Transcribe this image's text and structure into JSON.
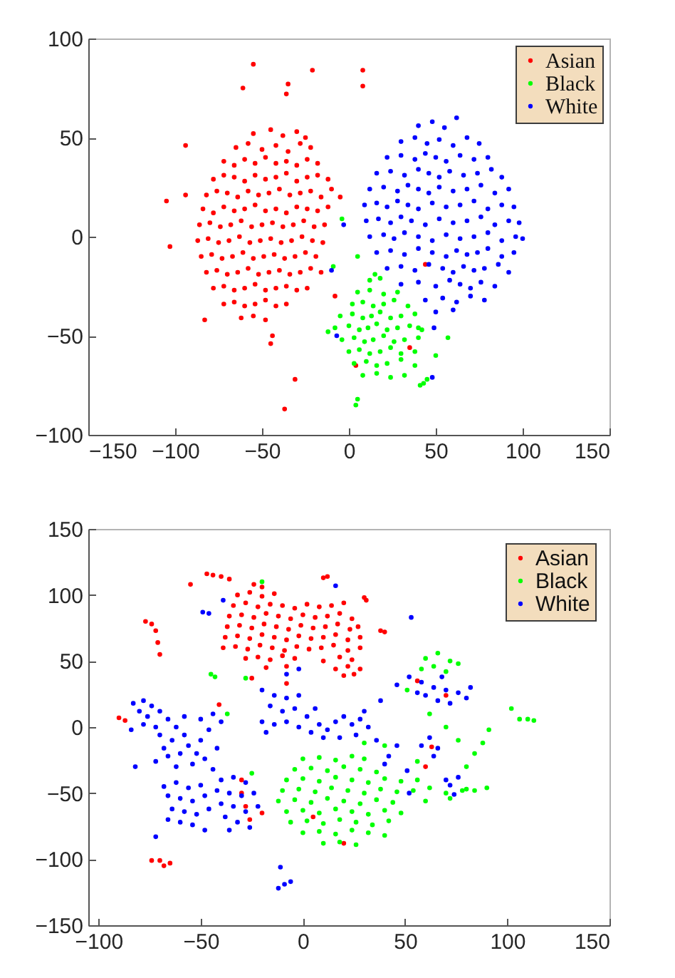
{
  "chart_data": [
    {
      "type": "scatter",
      "xlim": [
        -150,
        150
      ],
      "ylim": [
        -100,
        100
      ],
      "xticks": [
        -150,
        -100,
        -50,
        0,
        50,
        100,
        150
      ],
      "yticks": [
        -100,
        -50,
        0,
        50,
        100
      ],
      "legend": "top right",
      "marker": "circle",
      "series": [
        {
          "name": "Asian",
          "color": "#ff0000",
          "x": [
            -55,
            -45,
            -38,
            -30,
            -25,
            -65,
            -58,
            -50,
            -42,
            -35,
            -28,
            -22,
            -72,
            -66,
            -60,
            -54,
            -48,
            -42,
            -36,
            -30,
            -24,
            -18,
            -78,
            -72,
            -66,
            -60,
            -54,
            -48,
            -42,
            -36,
            -30,
            -24,
            -18,
            -12,
            -82,
            -76,
            -70,
            -64,
            -58,
            -52,
            -46,
            -40,
            -34,
            -28,
            -22,
            -16,
            -10,
            -84,
            -78,
            -72,
            -66,
            -60,
            -54,
            -48,
            -42,
            -36,
            -30,
            -24,
            -18,
            -12,
            -86,
            -80,
            -74,
            -68,
            -62,
            -56,
            -50,
            -44,
            -38,
            -32,
            -26,
            -20,
            -14,
            -87,
            -81,
            -75,
            -69,
            -63,
            -57,
            -51,
            -45,
            -39,
            -33,
            -27,
            -21,
            -15,
            -85,
            -79,
            -73,
            -67,
            -61,
            -55,
            -49,
            -43,
            -37,
            -31,
            -25,
            -19,
            -82,
            -76,
            -70,
            -64,
            -58,
            -52,
            -46,
            -40,
            -34,
            -28,
            -22,
            -16,
            -78,
            -72,
            -66,
            -60,
            -54,
            -48,
            -42,
            -36,
            -30,
            -24,
            -72,
            -66,
            -60,
            -54,
            -48,
            -42,
            -36,
            -62,
            -55,
            -48,
            -55,
            -21,
            -61,
            -35,
            -36,
            8,
            8,
            -94,
            -105,
            -94,
            -103,
            -83,
            -44,
            -45,
            -31,
            -37,
            -5,
            -8,
            4,
            35,
            44
          ],
          "values": [
            52,
            54,
            51,
            53,
            50,
            45,
            47,
            44,
            46,
            43,
            47,
            45,
            38,
            36,
            39,
            37,
            40,
            37,
            38,
            36,
            39,
            37,
            29,
            31,
            30,
            28,
            31,
            29,
            30,
            32,
            28,
            30,
            31,
            29,
            21,
            23,
            22,
            20,
            23,
            21,
            22,
            24,
            21,
            22,
            23,
            20,
            24,
            14,
            12,
            15,
            13,
            14,
            16,
            13,
            14,
            12,
            15,
            14,
            13,
            15,
            6,
            7,
            5,
            6,
            8,
            5,
            6,
            7,
            5,
            6,
            8,
            5,
            6,
            -2,
            -1,
            -3,
            -2,
            0,
            -3,
            -2,
            -1,
            -3,
            -2,
            0,
            -2,
            -3,
            -10,
            -9,
            -11,
            -10,
            -8,
            -11,
            -10,
            -9,
            -11,
            -10,
            -8,
            -10,
            -18,
            -17,
            -19,
            -18,
            -16,
            -19,
            -18,
            -17,
            -19,
            -18,
            -16,
            -18,
            -26,
            -25,
            -27,
            -26,
            -24,
            -27,
            -26,
            -25,
            -27,
            -26,
            -34,
            -33,
            -35,
            -34,
            -32,
            -35,
            -34,
            -41,
            -40,
            -42,
            87,
            84,
            75,
            77,
            72,
            84,
            76,
            46,
            18,
            21,
            -5,
            -42,
            -50,
            -54,
            -72,
            -87,
            20,
            -30,
            -65,
            -56,
            -14
          ]
        },
        {
          "name": "Black",
          "color": "#00ff00",
          "x": [
            12,
            18,
            5,
            12,
            20,
            28,
            2,
            8,
            14,
            20,
            26,
            34,
            -5,
            2,
            8,
            13,
            18,
            24,
            30,
            38,
            -8,
            0,
            6,
            11,
            16,
            22,
            28,
            35,
            42,
            -4,
            3,
            9,
            14,
            20,
            26,
            32,
            40,
            0,
            6,
            12,
            18,
            24,
            30,
            38,
            3,
            10,
            16,
            22,
            30,
            38,
            8,
            16,
            24,
            32,
            43,
            45,
            41,
            4,
            5,
            40,
            57,
            -4,
            -9,
            5,
            15,
            50,
            -12
          ],
          "values": [
            -22,
            -21,
            -28,
            -27,
            -29,
            -28,
            -34,
            -33,
            -35,
            -34,
            -32,
            -35,
            -40,
            -39,
            -41,
            -40,
            -38,
            -41,
            -40,
            -39,
            -46,
            -45,
            -47,
            -46,
            -44,
            -47,
            -46,
            -45,
            -47,
            -52,
            -51,
            -53,
            -52,
            -50,
            -53,
            -52,
            -51,
            -58,
            -57,
            -59,
            -58,
            -56,
            -59,
            -58,
            -64,
            -63,
            -65,
            -64,
            -62,
            -65,
            -70,
            -69,
            -71,
            -70,
            -74,
            -72,
            -75,
            -85,
            -82,
            -46,
            -51,
            9,
            -15,
            -10,
            -19,
            -60,
            -48
          ]
        },
        {
          "name": "White",
          "color": "#0000ff",
          "x": [
            40,
            48,
            55,
            62,
            30,
            38,
            45,
            52,
            60,
            68,
            75,
            22,
            30,
            38,
            44,
            50,
            56,
            64,
            72,
            80,
            16,
            24,
            32,
            40,
            46,
            52,
            58,
            66,
            74,
            82,
            88,
            12,
            20,
            28,
            34,
            40,
            46,
            52,
            60,
            68,
            76,
            84,
            92,
            9,
            16,
            22,
            28,
            34,
            40,
            48,
            56,
            64,
            72,
            80,
            88,
            95,
            10,
            17,
            24,
            30,
            36,
            44,
            52,
            60,
            68,
            76,
            84,
            92,
            98,
            12,
            20,
            26,
            32,
            40,
            48,
            56,
            64,
            72,
            80,
            88,
            96,
            100,
            16,
            24,
            32,
            40,
            48,
            56,
            62,
            68,
            74,
            80,
            88,
            95,
            22,
            30,
            38,
            46,
            54,
            60,
            66,
            72,
            78,
            86,
            92,
            30,
            40,
            50,
            58,
            64,
            70,
            76,
            84,
            44,
            54,
            62,
            70,
            78,
            50,
            60,
            -10,
            -7,
            49,
            48,
            -3
          ],
          "values": [
            56,
            58,
            55,
            60,
            48,
            50,
            47,
            49,
            46,
            50,
            47,
            40,
            41,
            39,
            42,
            40,
            38,
            41,
            39,
            40,
            32,
            33,
            31,
            34,
            32,
            30,
            33,
            31,
            32,
            34,
            30,
            24,
            25,
            23,
            26,
            24,
            22,
            25,
            23,
            24,
            26,
            22,
            24,
            16,
            17,
            15,
            18,
            16,
            14,
            17,
            15,
            16,
            18,
            14,
            16,
            15,
            8,
            9,
            7,
            10,
            8,
            6,
            9,
            7,
            8,
            10,
            6,
            8,
            7,
            0,
            1,
            -1,
            2,
            0,
            -2,
            1,
            -1,
            0,
            2,
            -2,
            0,
            -1,
            -8,
            -7,
            -9,
            -6,
            -8,
            -10,
            -7,
            -9,
            -8,
            -6,
            -10,
            -8,
            -16,
            -15,
            -17,
            -14,
            -16,
            -18,
            -15,
            -17,
            -16,
            -14,
            -18,
            -24,
            -23,
            -25,
            -22,
            -24,
            -26,
            -23,
            -25,
            -32,
            -31,
            -33,
            -30,
            -32,
            -38,
            -37,
            -17,
            -50,
            -46,
            -71,
            6
          ]
        }
      ]
    },
    {
      "type": "scatter",
      "xlim": [
        -105,
        150
      ],
      "ylim": [
        -150,
        150
      ],
      "xticks": [
        -100,
        -50,
        0,
        50,
        100,
        150
      ],
      "yticks": [
        -150,
        -100,
        -50,
        0,
        50,
        100,
        150
      ],
      "legend": "top right",
      "marker": "circle",
      "series": [
        {
          "name": "Asian",
          "color": "#ff0000",
          "x": [
            -24,
            -20,
            -32,
            -26,
            -20,
            -14,
            -34,
            -28,
            -22,
            -16,
            -10,
            -4,
            2,
            8,
            14,
            20,
            -36,
            -30,
            -24,
            -18,
            -12,
            -6,
            0,
            6,
            12,
            18,
            24,
            -37,
            -31,
            -25,
            -19,
            -13,
            -7,
            -1,
            5,
            11,
            17,
            23,
            27,
            -38,
            -32,
            -26,
            -20,
            -14,
            -8,
            -2,
            4,
            10,
            16,
            22,
            28,
            -39,
            -33,
            -27,
            -21,
            -15,
            -9,
            -3,
            3,
            9,
            15,
            22,
            28,
            -28,
            -22,
            -16,
            -10,
            -4,
            10,
            18,
            24,
            -18,
            -8,
            16,
            22,
            28,
            20,
            25,
            -47,
            -44,
            -55,
            -40,
            -36,
            12,
            10,
            30,
            31,
            38,
            40,
            -77,
            -74,
            -72,
            -71,
            -70,
            -90,
            -87,
            -70,
            -65,
            -74,
            -68,
            -8,
            -41,
            -30,
            -28,
            -26,
            -30,
            56,
            63,
            70,
            60,
            -25,
            20,
            5,
            -20
          ],
          "values": [
            108,
            106,
            100,
            102,
            99,
            101,
            92,
            94,
            91,
            93,
            92,
            90,
            93,
            91,
            92,
            94,
            84,
            85,
            83,
            86,
            84,
            82,
            85,
            83,
            84,
            86,
            82,
            76,
            77,
            75,
            78,
            76,
            74,
            77,
            75,
            76,
            78,
            74,
            76,
            68,
            69,
            67,
            70,
            68,
            66,
            69,
            67,
            68,
            70,
            66,
            68,
            60,
            61,
            59,
            62,
            60,
            58,
            61,
            59,
            60,
            62,
            58,
            60,
            52,
            53,
            51,
            54,
            52,
            50,
            53,
            51,
            45,
            46,
            44,
            46,
            44,
            39,
            40,
            116,
            115,
            108,
            114,
            112,
            114,
            113,
            98,
            96,
            73,
            72,
            80,
            78,
            73,
            64,
            55,
            7,
            5,
            -101,
            -103,
            -101,
            -105,
            33,
            17,
            -50,
            -60,
            -70,
            -40,
            35,
            -15,
            24,
            -30,
            37,
            -88,
            -68,
            -65
          ]
        },
        {
          "name": "Black",
          "color": "#00ff00",
          "x": [
            0,
            8,
            16,
            24,
            30,
            -4,
            4,
            12,
            20,
            28,
            36,
            -8,
            0,
            8,
            16,
            24,
            32,
            40,
            48,
            56,
            -10,
            -2,
            6,
            14,
            22,
            30,
            38,
            46,
            54,
            62,
            70,
            78,
            -12,
            -4,
            4,
            12,
            20,
            28,
            36,
            44,
            60,
            72,
            -8,
            0,
            8,
            16,
            24,
            32,
            40,
            48,
            -6,
            2,
            10,
            18,
            26,
            34,
            42,
            0,
            8,
            16,
            24,
            32,
            40,
            10,
            18,
            26,
            60,
            66,
            72,
            64,
            70,
            76,
            58,
            106,
            110,
            113,
            102,
            91,
            88,
            84,
            80,
            -45,
            -43,
            -28,
            -37,
            -20,
            51,
            62,
            70,
            76,
            56,
            80,
            84,
            90,
            40,
            30,
            -25
          ],
          "values": [
            -24,
            -23,
            -25,
            -22,
            -24,
            -32,
            -31,
            -33,
            -30,
            -32,
            -34,
            -40,
            -39,
            -41,
            -38,
            -40,
            -42,
            -39,
            -41,
            -40,
            -48,
            -47,
            -49,
            -46,
            -48,
            -50,
            -47,
            -49,
            -48,
            -46,
            -50,
            -48,
            -56,
            -55,
            -57,
            -54,
            -56,
            -58,
            -55,
            -57,
            -56,
            -54,
            -64,
            -63,
            -65,
            -62,
            -64,
            -66,
            -63,
            -65,
            -72,
            -71,
            -73,
            -70,
            -72,
            -74,
            -71,
            -80,
            -79,
            -81,
            -78,
            -80,
            -82,
            -88,
            -87,
            -89,
            52,
            56,
            50,
            46,
            42,
            48,
            44,
            6,
            6,
            5,
            14,
            -2,
            -12,
            -20,
            -30,
            40,
            38,
            37,
            10,
            110,
            28,
            10,
            0,
            -10,
            -26,
            -47,
            -48,
            -46,
            -14,
            -12,
            -35
          ]
        },
        {
          "name": "White",
          "color": "#0000ff",
          "x": [
            -83,
            -78,
            -74,
            -80,
            -76,
            -70,
            -66,
            -72,
            -78,
            -84,
            -62,
            -58,
            -64,
            -70,
            -56,
            -60,
            -66,
            -52,
            -50,
            -54,
            -62,
            -46,
            -50,
            -44,
            -40,
            -58,
            -48,
            -42,
            -68,
            -82,
            -72,
            -44,
            -68,
            -62,
            -56,
            -50,
            -66,
            -60,
            -54,
            -48,
            -64,
            -58,
            -52,
            -46,
            -60,
            -54,
            -48,
            -66,
            -40,
            -34,
            -28,
            -42,
            -36,
            -30,
            -24,
            -40,
            -34,
            -28,
            -38,
            -32,
            -26,
            -36,
            -22,
            -20,
            -14,
            -8,
            -2,
            -16,
            -10,
            -20,
            -14,
            -8,
            -2,
            4,
            -18,
            2,
            8,
            12,
            16,
            20,
            24,
            28,
            32,
            26,
            18,
            36,
            30,
            10,
            -4,
            6,
            42,
            51,
            46,
            40,
            52,
            38,
            46,
            58,
            62,
            66,
            64,
            74,
            72,
            76,
            70,
            52,
            58,
            64,
            70,
            76,
            82,
            60,
            66,
            72,
            56,
            68,
            80,
            -49,
            -46,
            53,
            -9,
            -12,
            -6,
            -11,
            -72,
            16,
            -2,
            -39,
            -8
          ],
          "values": [
            18,
            20,
            16,
            12,
            8,
            12,
            6,
            0,
            2,
            -2,
            0,
            -6,
            -10,
            -6,
            -14,
            -20,
            -22,
            -20,
            -10,
            -28,
            -30,
            -2,
            6,
            10,
            4,
            8,
            -24,
            -16,
            -16,
            -30,
            -26,
            -32,
            -45,
            -42,
            -46,
            -44,
            -52,
            -54,
            -56,
            -52,
            -62,
            -64,
            -66,
            -62,
            -72,
            -74,
            -78,
            -70,
            -40,
            -38,
            -42,
            -48,
            -50,
            -52,
            -50,
            -58,
            -60,
            -64,
            -68,
            -72,
            -76,
            -78,
            -60,
            28,
            24,
            22,
            24,
            16,
            12,
            4,
            2,
            4,
            0,
            -4,
            -4,
            8,
            2,
            -2,
            4,
            8,
            2,
            6,
            0,
            -6,
            -8,
            -10,
            12,
            -8,
            14,
            14,
            -22,
            -33,
            -14,
            -28,
            -50,
            20,
            32,
            -14,
            -8,
            -16,
            -22,
            -51,
            -44,
            -38,
            -40,
            38,
            34,
            30,
            28,
            26,
            30,
            24,
            20,
            18,
            26,
            38,
            22,
            87,
            86,
            83,
            -119,
            -122,
            -117,
            -106,
            -83,
            107,
            44,
            96,
            40
          ]
        }
      ]
    }
  ]
}
